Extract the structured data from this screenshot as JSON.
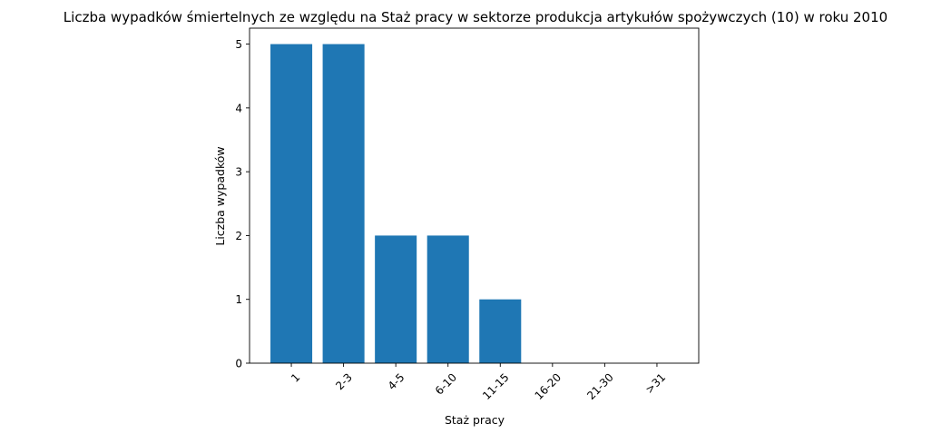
{
  "chart_data": {
    "type": "bar",
    "title": "Liczba wypadków śmiertelnych ze względu na Staż pracy w sektorze produkcja artykułów spożywczych  (10)   w roku 2010",
    "xlabel": "Staż pracy",
    "ylabel": "Liczba wypadków",
    "categories": [
      "1",
      "2-3",
      "4-5",
      "6-10",
      "11-15",
      "16-20",
      "21-30",
      ">31"
    ],
    "values": [
      5,
      5,
      2,
      2,
      1,
      0,
      0,
      0
    ],
    "ylim": [
      0,
      5.25
    ],
    "yticks": [
      "0",
      "1",
      "2",
      "3",
      "4",
      "5"
    ],
    "bar_color": "#1f77b4",
    "grid": false,
    "xtick_rotation": 45
  }
}
